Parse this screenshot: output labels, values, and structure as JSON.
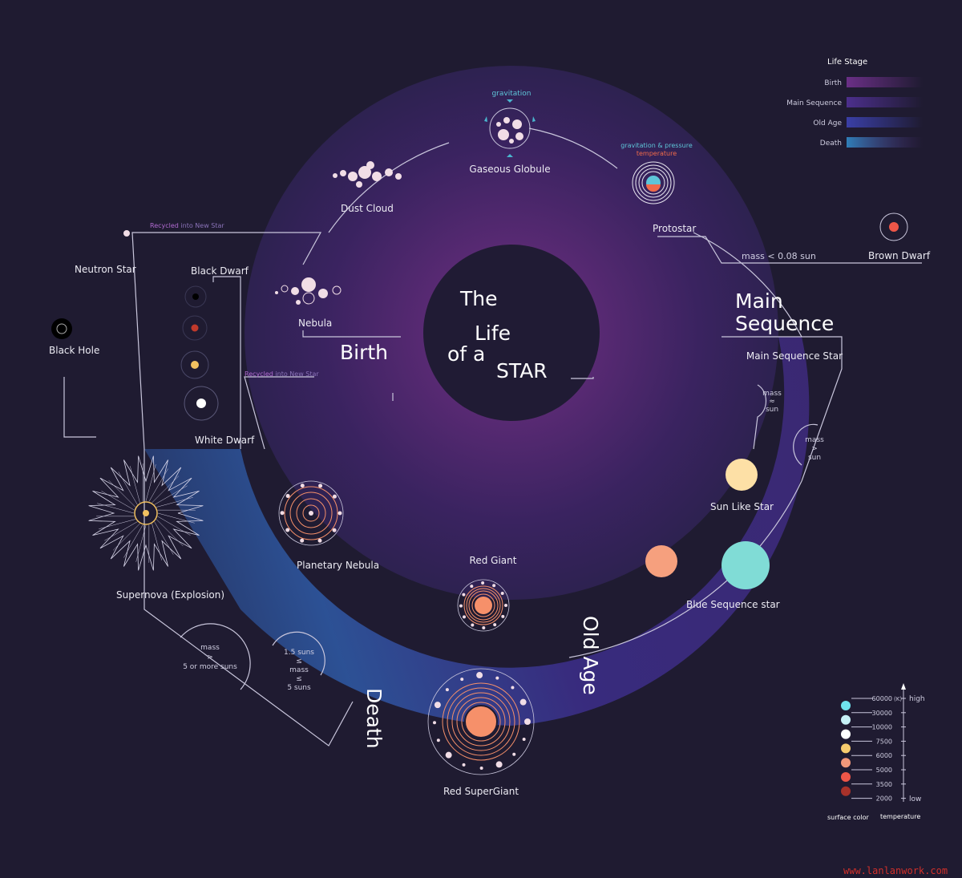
{
  "title": {
    "line1": "The",
    "line2": "Life",
    "line3": "of a",
    "line4": "STAR"
  },
  "stages": {
    "birth": "Birth",
    "main_sequence_1": "Main",
    "main_sequence_2": "Sequence",
    "old_age": "Old Age",
    "death": "Death"
  },
  "nodes": {
    "gravitation": "gravitation",
    "gaseous_globule": "Gaseous Globule",
    "grav_pressure": "gravitation & pressure",
    "temperature": "temperature",
    "protostar": "Protostar",
    "dust_cloud": "Dust Cloud",
    "nebula": "Nebula",
    "brown_dwarf": "Brown Dwarf",
    "mass_brown": "mass < 0.08 sun",
    "main_sequence_star": "Main Sequence Star",
    "mass_approx_sun": [
      "mass",
      "≈",
      "sun"
    ],
    "mass_gt_sun": [
      "mass",
      ">",
      "sun"
    ],
    "sun_like_star": "Sun Like Star",
    "blue_sequence_star": "Blue Sequence star",
    "red_giant": "Red Giant",
    "red_supergiant": "Red SuperGiant",
    "planetary_nebula": "Planetary Nebula",
    "supernova": "Supernova (Explosion)",
    "white_dwarf": "White Dwarf",
    "black_dwarf": "Black Dwarf",
    "neutron_star": "Neutron Star",
    "black_hole": "Black Hole",
    "recycled_1": {
      "bold": "Recycled",
      "rest": " into New Star"
    },
    "recycled_2": {
      "bold": "Recycled",
      "rest": " into New Star"
    },
    "mass_gt5": [
      "mass",
      ">",
      "5 or more suns"
    ],
    "mass_15_5": [
      "1.5 suns",
      "≤",
      "mass",
      "≤",
      "5 suns"
    ]
  },
  "life_stage_legend": {
    "title": "Life Stage",
    "items": [
      {
        "label": "Birth",
        "color": "#6a2f86"
      },
      {
        "label": "Main Sequence",
        "color": "#4c2f8c"
      },
      {
        "label": "Old Age",
        "color": "#3a3fa6"
      },
      {
        "label": "Death",
        "color": "#2f7fb8"
      }
    ]
  },
  "temperature_legend": {
    "surface_color_label": "surface color",
    "temperature_label": "temperature",
    "high": "high",
    "low": "low",
    "unit": "(K)",
    "items": [
      {
        "value": "60000",
        "color": "#6fe3ee"
      },
      {
        "value": "30000",
        "color": "#c6f1f6"
      },
      {
        "value": "10000",
        "color": "#ffffff"
      },
      {
        "value": "7500",
        "color": "#f7cc6e"
      },
      {
        "value": "6000",
        "color": "#f2987a"
      },
      {
        "value": "5000",
        "color": "#ee5648"
      },
      {
        "value": "3500",
        "color": "#a8322a"
      },
      {
        "value": "2000",
        "color": ""
      }
    ]
  },
  "watermark": "www.lanlanwork.com"
}
